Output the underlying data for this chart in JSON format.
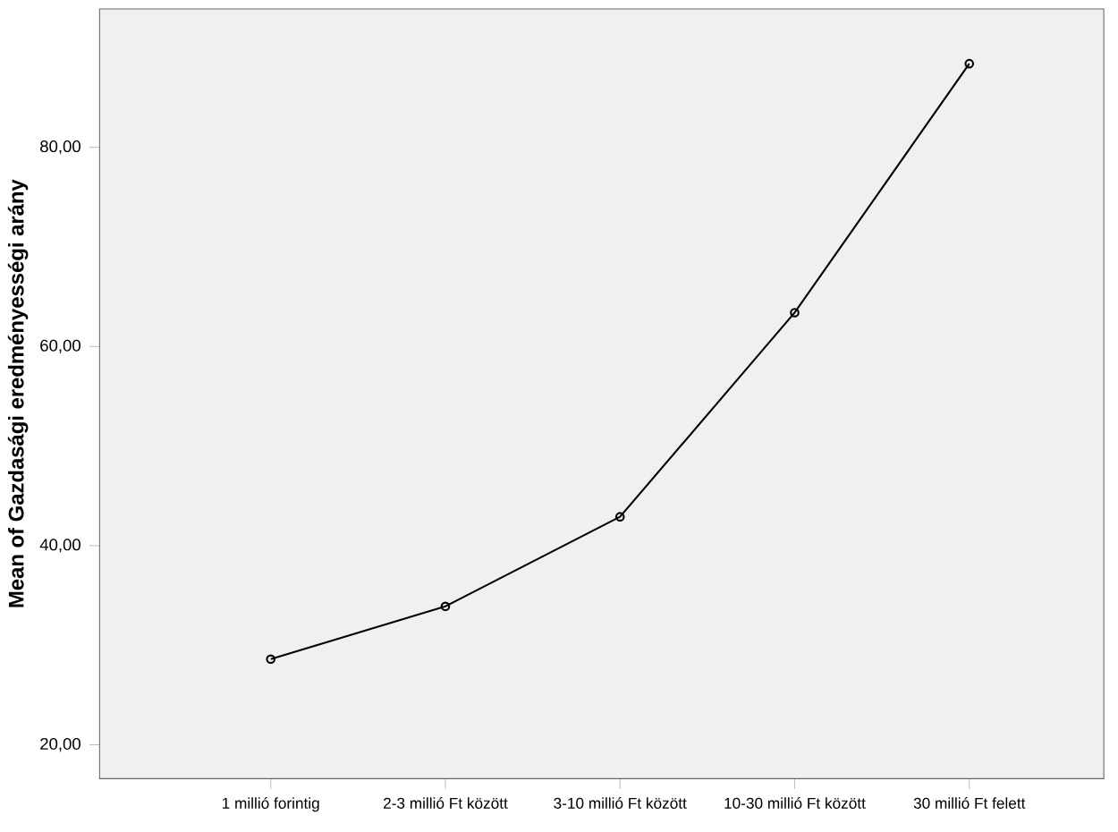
{
  "chart_data": {
    "type": "line",
    "ylabel": "Mean of Gazdasági eredményességi arány",
    "categories": [
      "1 millió forintig",
      "2-3 millió Ft között",
      "3-10 millió Ft között",
      "10-30 millió Ft között",
      "30 millió Ft felett"
    ],
    "values": [
      28.6,
      33.9,
      42.9,
      63.4,
      88.4
    ],
    "color": "#000000",
    "marker": "circle",
    "line_style": "solid",
    "grid": false,
    "ylim": [
      16.6,
      93.9
    ],
    "yticks": [
      {
        "value": 20,
        "label": "20,00"
      },
      {
        "value": 40,
        "label": "40,00"
      },
      {
        "value": 60,
        "label": "60,00"
      },
      {
        "value": 80,
        "label": "80,00"
      }
    ]
  }
}
